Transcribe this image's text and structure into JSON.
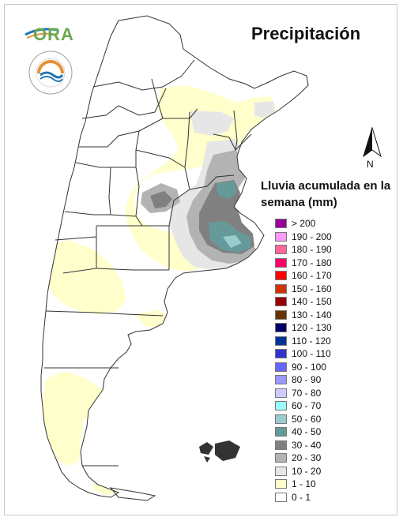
{
  "title": "Precipitación",
  "logo": {
    "text": "ORA",
    "seal_text": "INSTITUTO NACIONAL DE TECNOLOGÍA AGROPECUARIA · ARGENTINA",
    "colors": {
      "green": "#6aa84f",
      "blue": "#1f78b4",
      "orange": "#e69138"
    }
  },
  "north_arrow": {
    "label": "N"
  },
  "legend": {
    "title": "Lluvia acumulada en la semana (mm)",
    "classes": [
      {
        "label": "> 200",
        "color": "#990099"
      },
      {
        "label": "190 - 200",
        "color": "#ff99ff"
      },
      {
        "label": "180 - 190",
        "color": "#ff6699"
      },
      {
        "label": "170 - 180",
        "color": "#ff0066"
      },
      {
        "label": "160 - 170",
        "color": "#ff0000"
      },
      {
        "label": "150 - 160",
        "color": "#cc3300"
      },
      {
        "label": "140 - 150",
        "color": "#990000"
      },
      {
        "label": "130 - 140",
        "color": "#663300"
      },
      {
        "label": "120 - 130",
        "color": "#000066"
      },
      {
        "label": "110 - 120",
        "color": "#003399"
      },
      {
        "label": "100 - 110",
        "color": "#3333cc"
      },
      {
        "label": "90 - 100",
        "color": "#6666ff"
      },
      {
        "label": "80 - 90",
        "color": "#9999ff"
      },
      {
        "label": "70 - 80",
        "color": "#ccccff"
      },
      {
        "label": "60 - 70",
        "color": "#99ffff"
      },
      {
        "label": "50 - 60",
        "color": "#99cccc"
      },
      {
        "label": "40 - 50",
        "color": "#669999"
      },
      {
        "label": "30 - 40",
        "color": "#808080"
      },
      {
        "label": "20 - 30",
        "color": "#b3b3b3"
      },
      {
        "label": "10 - 20",
        "color": "#e6e6e6"
      },
      {
        "label": "1 - 10",
        "color": "#ffffcc"
      },
      {
        "label": "0 - 1",
        "color": "#ffffff"
      }
    ]
  },
  "colors": {
    "border": "#333333",
    "background": "#ffffff"
  }
}
